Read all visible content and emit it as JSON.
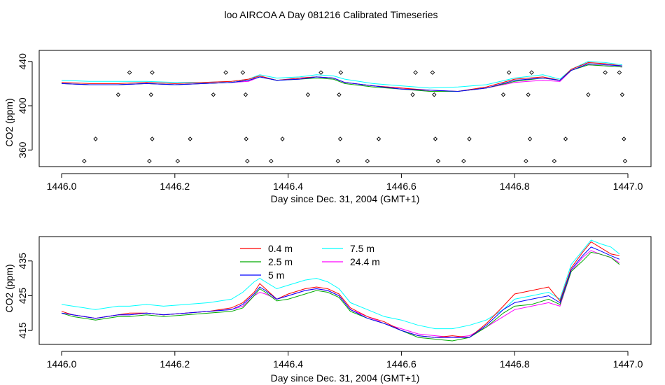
{
  "page": {
    "title": "loo AIRCOA A  Day 081216  Calibrated Timeseries"
  },
  "colors": {
    "0.4 m": "#ff0000",
    "2.5 m": "#00aa00",
    "5 m": "#0000ff",
    "7.5 m": "#00ffff",
    "24.4 m": "#ff00ff",
    "points": "#000000"
  },
  "chart_data": [
    {
      "type": "line",
      "xlabel": "Day since Dec. 31, 2004 (GMT+1)",
      "ylabel": "CO2 (ppm)",
      "xlim": [
        1446.0,
        1447.0
      ],
      "ylim": [
        345,
        450
      ],
      "x_ticks": [
        1446.0,
        1446.2,
        1446.4,
        1446.6,
        1446.8,
        1447.0
      ],
      "x_tick_labels": [
        "1446.0",
        "1446.2",
        "1446.4",
        "1446.6",
        "1446.8",
        "1447.0"
      ],
      "y_ticks": [
        360,
        400,
        440
      ],
      "y_tick_labels": [
        "360",
        "400",
        "440"
      ],
      "series": [
        {
          "color_key": "7.5 m",
          "x": [
            1446.0,
            1446.05,
            1446.1,
            1446.15,
            1446.2,
            1446.25,
            1446.3,
            1446.33,
            1446.35,
            1446.38,
            1446.42,
            1446.45,
            1446.48,
            1446.5,
            1446.55,
            1446.6,
            1446.65,
            1446.7,
            1446.75,
            1446.8,
            1446.85,
            1446.88,
            1446.9,
            1446.93,
            1446.96,
            1446.99
          ],
          "y": [
            423,
            422,
            422,
            422,
            421,
            421,
            422,
            424,
            428,
            425,
            426,
            428,
            427,
            424,
            420,
            418,
            416,
            417,
            419,
            425,
            428,
            424,
            433,
            440,
            439,
            437
          ]
        },
        {
          "color_key": "24.4 m",
          "x": [
            1446.0,
            1446.05,
            1446.1,
            1446.15,
            1446.2,
            1446.25,
            1446.3,
            1446.33,
            1446.35,
            1446.38,
            1446.42,
            1446.45,
            1446.48,
            1446.5,
            1446.55,
            1446.6,
            1446.65,
            1446.7,
            1446.75,
            1446.8,
            1446.85,
            1446.88,
            1446.9,
            1446.93,
            1446.96,
            1446.99
          ],
          "y": [
            420,
            419,
            419,
            420,
            419,
            420,
            421,
            422,
            426,
            423,
            425,
            426,
            425,
            421,
            418,
            416,
            413,
            413,
            416,
            421,
            423,
            422,
            432,
            437,
            436,
            435
          ]
        },
        {
          "color_key": "0.4 m",
          "x": [
            1446.0,
            1446.05,
            1446.1,
            1446.15,
            1446.2,
            1446.25,
            1446.3,
            1446.33,
            1446.35,
            1446.38,
            1446.42,
            1446.45,
            1446.48,
            1446.5,
            1446.55,
            1446.6,
            1446.65,
            1446.7,
            1446.75,
            1446.8,
            1446.85,
            1446.88,
            1446.9,
            1446.93,
            1446.96,
            1446.99
          ],
          "y": [
            421,
            420,
            420,
            421,
            420,
            421,
            422,
            424,
            427,
            423,
            425,
            426,
            425,
            421,
            418,
            416,
            414,
            413,
            417,
            424,
            426,
            423,
            433,
            439,
            438,
            436
          ]
        },
        {
          "color_key": "2.5 m",
          "x": [
            1446.0,
            1446.05,
            1446.1,
            1446.15,
            1446.2,
            1446.25,
            1446.3,
            1446.33,
            1446.35,
            1446.38,
            1446.42,
            1446.45,
            1446.48,
            1446.5,
            1446.55,
            1446.6,
            1446.65,
            1446.7,
            1446.75,
            1446.8,
            1446.85,
            1446.88,
            1446.9,
            1446.93,
            1446.96,
            1446.99
          ],
          "y": [
            420,
            419,
            419,
            420,
            419,
            420,
            421,
            423,
            426,
            423,
            424,
            425,
            424,
            420,
            417,
            415,
            413,
            413,
            416,
            422,
            425,
            423,
            432,
            437,
            436,
            435
          ]
        },
        {
          "color_key": "5 m",
          "x": [
            1446.0,
            1446.05,
            1446.1,
            1446.15,
            1446.2,
            1446.25,
            1446.3,
            1446.33,
            1446.35,
            1446.38,
            1446.42,
            1446.45,
            1446.48,
            1446.5,
            1446.55,
            1446.6,
            1446.65,
            1446.7,
            1446.75,
            1446.8,
            1446.85,
            1446.88,
            1446.9,
            1446.93,
            1446.96,
            1446.99
          ],
          "y": [
            420,
            419,
            419,
            420,
            419,
            420,
            421,
            423,
            426,
            423,
            424,
            426,
            425,
            421,
            418,
            415,
            414,
            413,
            416,
            423,
            425,
            423,
            432,
            438,
            437,
            436
          ]
        }
      ],
      "points": {
        "x": [
          1446.04,
          1446.06,
          1446.1,
          1446.12,
          1446.155,
          1446.158,
          1446.16,
          1446.16,
          1446.205,
          1446.227,
          1446.268,
          1446.29,
          1446.32,
          1446.325,
          1446.326,
          1446.328,
          1446.37,
          1446.39,
          1446.435,
          1446.458,
          1446.488,
          1446.49,
          1446.492,
          1446.493,
          1446.54,
          1446.56,
          1446.62,
          1446.625,
          1446.655,
          1446.658,
          1446.66,
          1446.665,
          1446.71,
          1446.72,
          1446.78,
          1446.79,
          1446.82,
          1446.824,
          1446.827,
          1446.83,
          1446.87,
          1446.89,
          1446.93,
          1446.96,
          1446.985,
          1446.99,
          1446.993,
          1446.995
        ],
        "y": [
          350,
          370,
          410,
          430,
          350,
          410,
          370,
          430,
          350,
          370,
          410,
          430,
          430,
          410,
          370,
          350,
          350,
          370,
          410,
          430,
          350,
          410,
          370,
          430,
          350,
          370,
          410,
          430,
          430,
          410,
          370,
          350,
          350,
          370,
          410,
          430,
          350,
          410,
          370,
          430,
          350,
          370,
          410,
          430,
          430,
          410,
          370,
          350
        ]
      }
    },
    {
      "type": "line",
      "xlabel": "Day since Dec. 31, 2004 (GMT+1)",
      "ylabel": "CO2 (ppm)",
      "xlim": [
        1446.0,
        1447.0
      ],
      "ylim": [
        411,
        442
      ],
      "x_ticks": [
        1446.0,
        1446.2,
        1446.4,
        1446.6,
        1446.8,
        1447.0
      ],
      "x_tick_labels": [
        "1446.0",
        "1446.2",
        "1446.4",
        "1446.6",
        "1446.8",
        "1447.0"
      ],
      "y_ticks": [
        415,
        425,
        435
      ],
      "y_tick_labels": [
        "415",
        "425",
        "435"
      ],
      "legend": {
        "placement": "top-center",
        "entries": [
          {
            "label": "0.4 m",
            "color_key": "0.4 m"
          },
          {
            "label": "2.5 m",
            "color_key": "2.5 m"
          },
          {
            "label": "5 m",
            "color_key": "5 m"
          },
          {
            "label": "7.5 m",
            "color_key": "7.5 m"
          },
          {
            "label": "24.4 m",
            "color_key": "24.4 m"
          }
        ]
      },
      "series": [
        {
          "name": "7.5 m",
          "color_key": "7.5 m",
          "x": [
            1446.0,
            1446.02,
            1446.04,
            1446.06,
            1446.08,
            1446.1,
            1446.12,
            1446.15,
            1446.18,
            1446.22,
            1446.26,
            1446.3,
            1446.32,
            1446.34,
            1446.35,
            1446.36,
            1446.38,
            1446.4,
            1446.43,
            1446.45,
            1446.47,
            1446.49,
            1446.51,
            1446.54,
            1446.57,
            1446.6,
            1446.63,
            1446.66,
            1446.69,
            1446.72,
            1446.75,
            1446.78,
            1446.8,
            1446.83,
            1446.86,
            1446.88,
            1446.9,
            1446.92,
            1446.935,
            1446.95,
            1446.97,
            1446.985
          ],
          "y": [
            422.5,
            422,
            421.5,
            421,
            421.5,
            422,
            422,
            422.5,
            422,
            422.5,
            423,
            424,
            426,
            429,
            430,
            429,
            427,
            428,
            429.5,
            430,
            429,
            427,
            423,
            421,
            419,
            418,
            416.5,
            415.5,
            415.5,
            416.5,
            418,
            421,
            424,
            425,
            426,
            424,
            434,
            438,
            441,
            440,
            439,
            437
          ]
        },
        {
          "name": "24.4 m",
          "color_key": "24.4 m",
          "x": [
            1446.0,
            1446.02,
            1446.04,
            1446.06,
            1446.08,
            1446.1,
            1446.12,
            1446.15,
            1446.18,
            1446.22,
            1446.26,
            1446.3,
            1446.32,
            1446.34,
            1446.35,
            1446.36,
            1446.38,
            1446.4,
            1446.43,
            1446.45,
            1446.47,
            1446.49,
            1446.51,
            1446.54,
            1446.57,
            1446.6,
            1446.63,
            1446.66,
            1446.69,
            1446.72,
            1446.75,
            1446.78,
            1446.8,
            1446.83,
            1446.86,
            1446.88,
            1446.9,
            1446.92,
            1446.935,
            1446.95,
            1446.97,
            1446.985
          ],
          "y": [
            420,
            419.5,
            419,
            418.5,
            419,
            419.5,
            419.5,
            420,
            419.5,
            420,
            420.5,
            421,
            422,
            425,
            426,
            425.5,
            424,
            425,
            426.5,
            427,
            426.5,
            425,
            421,
            419,
            417,
            415.5,
            414,
            413.5,
            413,
            413.5,
            416,
            419,
            421,
            422,
            423,
            422,
            432,
            436,
            438,
            437,
            436,
            434.5
          ]
        },
        {
          "name": "0.4 m",
          "color_key": "0.4 m",
          "x": [
            1446.0,
            1446.02,
            1446.04,
            1446.06,
            1446.08,
            1446.1,
            1446.12,
            1446.15,
            1446.18,
            1446.22,
            1446.26,
            1446.3,
            1446.32,
            1446.34,
            1446.35,
            1446.36,
            1446.38,
            1446.4,
            1446.43,
            1446.45,
            1446.47,
            1446.49,
            1446.51,
            1446.54,
            1446.57,
            1446.6,
            1446.63,
            1446.66,
            1446.69,
            1446.72,
            1446.75,
            1446.78,
            1446.8,
            1446.83,
            1446.86,
            1446.88,
            1446.9,
            1446.92,
            1446.935,
            1446.95,
            1446.97,
            1446.985
          ],
          "y": [
            420.5,
            419.5,
            419,
            418.5,
            419,
            419.5,
            420,
            420,
            419.5,
            420,
            420.5,
            421.5,
            423,
            426,
            428.5,
            427,
            424,
            425.5,
            427,
            427.5,
            427,
            425.5,
            421.5,
            419,
            417.5,
            415,
            413.5,
            413,
            413.5,
            413,
            417,
            422,
            425.5,
            426.5,
            427.5,
            423.5,
            433,
            437.5,
            440.5,
            439,
            437,
            436.5
          ]
        },
        {
          "name": "2.5 m",
          "color_key": "2.5 m",
          "x": [
            1446.0,
            1446.02,
            1446.04,
            1446.06,
            1446.08,
            1446.1,
            1446.12,
            1446.15,
            1446.18,
            1446.22,
            1446.26,
            1446.3,
            1446.32,
            1446.34,
            1446.35,
            1446.36,
            1446.38,
            1446.4,
            1446.43,
            1446.45,
            1446.47,
            1446.49,
            1446.51,
            1446.54,
            1446.57,
            1446.6,
            1446.63,
            1446.66,
            1446.69,
            1446.72,
            1446.75,
            1446.78,
            1446.8,
            1446.83,
            1446.86,
            1446.88,
            1446.9,
            1446.92,
            1446.935,
            1446.95,
            1446.97,
            1446.985
          ],
          "y": [
            420,
            419,
            418.5,
            418,
            418.5,
            419,
            419,
            419.5,
            419,
            419.5,
            420,
            420.5,
            421.5,
            425,
            427,
            426,
            423.5,
            424,
            425.5,
            426.5,
            426,
            424.5,
            420.5,
            418.5,
            417,
            415,
            413,
            412.5,
            412,
            413,
            416,
            420,
            422,
            422.5,
            424,
            422.5,
            432,
            435,
            437.5,
            437,
            436,
            434
          ]
        },
        {
          "name": "5 m",
          "color_key": "5 m",
          "x": [
            1446.0,
            1446.02,
            1446.04,
            1446.06,
            1446.08,
            1446.1,
            1446.12,
            1446.15,
            1446.18,
            1446.22,
            1446.26,
            1446.3,
            1446.32,
            1446.34,
            1446.35,
            1446.36,
            1446.38,
            1446.4,
            1446.43,
            1446.45,
            1446.47,
            1446.49,
            1446.51,
            1446.54,
            1446.57,
            1446.6,
            1446.63,
            1446.66,
            1446.69,
            1446.72,
            1446.75,
            1446.78,
            1446.8,
            1446.83,
            1446.86,
            1446.88,
            1446.9,
            1446.92,
            1446.935,
            1446.95,
            1446.97,
            1446.985
          ],
          "y": [
            420,
            419.5,
            419,
            418.5,
            419,
            419.5,
            419.5,
            420,
            419.5,
            420,
            420.5,
            421,
            422.5,
            425.5,
            427.5,
            426.5,
            424,
            425,
            426.5,
            427,
            426.5,
            425,
            421,
            418.5,
            417,
            415,
            413.5,
            413,
            413,
            413,
            416.5,
            421,
            423,
            424,
            425,
            423,
            432.5,
            436.5,
            439,
            438,
            436.5,
            435.5
          ]
        }
      ]
    }
  ]
}
